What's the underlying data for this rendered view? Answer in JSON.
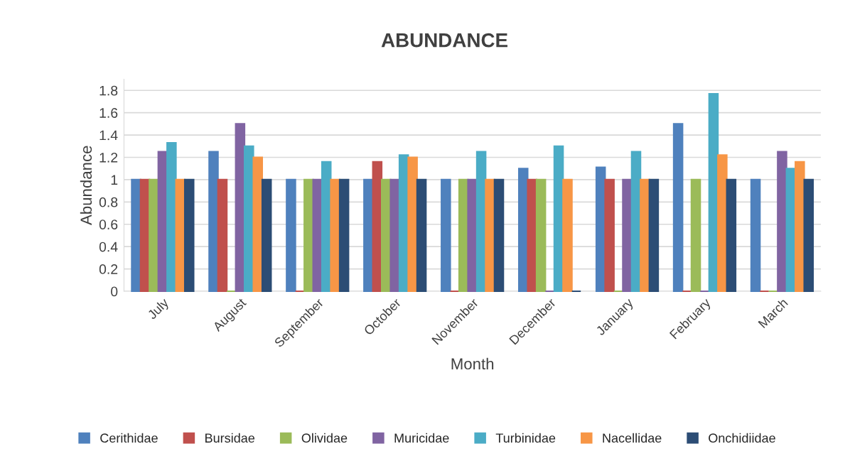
{
  "chart_data": {
    "type": "bar",
    "title": "ABUNDANCE",
    "xlabel": "Month",
    "ylabel": "Abundance",
    "categories": [
      "July",
      "August",
      "September",
      "October",
      "November",
      "December",
      "January",
      "February",
      "March"
    ],
    "series": [
      {
        "name": "Cerithidae",
        "color": "#4f81bd",
        "values": [
          1,
          1.25,
          1,
          1,
          1,
          1.1,
          1.11,
          1.5,
          1
        ]
      },
      {
        "name": "Bursidae",
        "color": "#c0504d",
        "values": [
          1,
          1,
          0,
          1.16,
          0,
          1,
          1,
          0,
          0
        ]
      },
      {
        "name": "Olividae",
        "color": "#9bbb59",
        "values": [
          1,
          0,
          1,
          1,
          1,
          1,
          0,
          1,
          0
        ]
      },
      {
        "name": "Muricidae",
        "color": "#8064a2",
        "values": [
          1.25,
          1.5,
          1,
          1,
          1,
          0,
          1,
          0,
          1.25
        ]
      },
      {
        "name": "Turbinidae",
        "color": "#4bacc6",
        "values": [
          1.33,
          1.3,
          1.16,
          1.22,
          1.25,
          1.3,
          1.25,
          1.77,
          1.1
        ]
      },
      {
        "name": "Nacellidae",
        "color": "#f79646",
        "values": [
          1,
          1.2,
          1,
          1.2,
          1,
          1,
          1,
          1.22,
          1.16
        ]
      },
      {
        "name": "Onchidiidae",
        "color": "#2c4d75",
        "values": [
          1,
          1,
          1,
          1,
          1,
          0,
          1,
          1,
          1
        ]
      }
    ],
    "ylim": [
      0,
      1.9
    ],
    "yticks": [
      0,
      0.2,
      0.4,
      0.6,
      0.8,
      1,
      1.2,
      1.4,
      1.6,
      1.8
    ],
    "grid": "y",
    "legend": "bottom"
  }
}
